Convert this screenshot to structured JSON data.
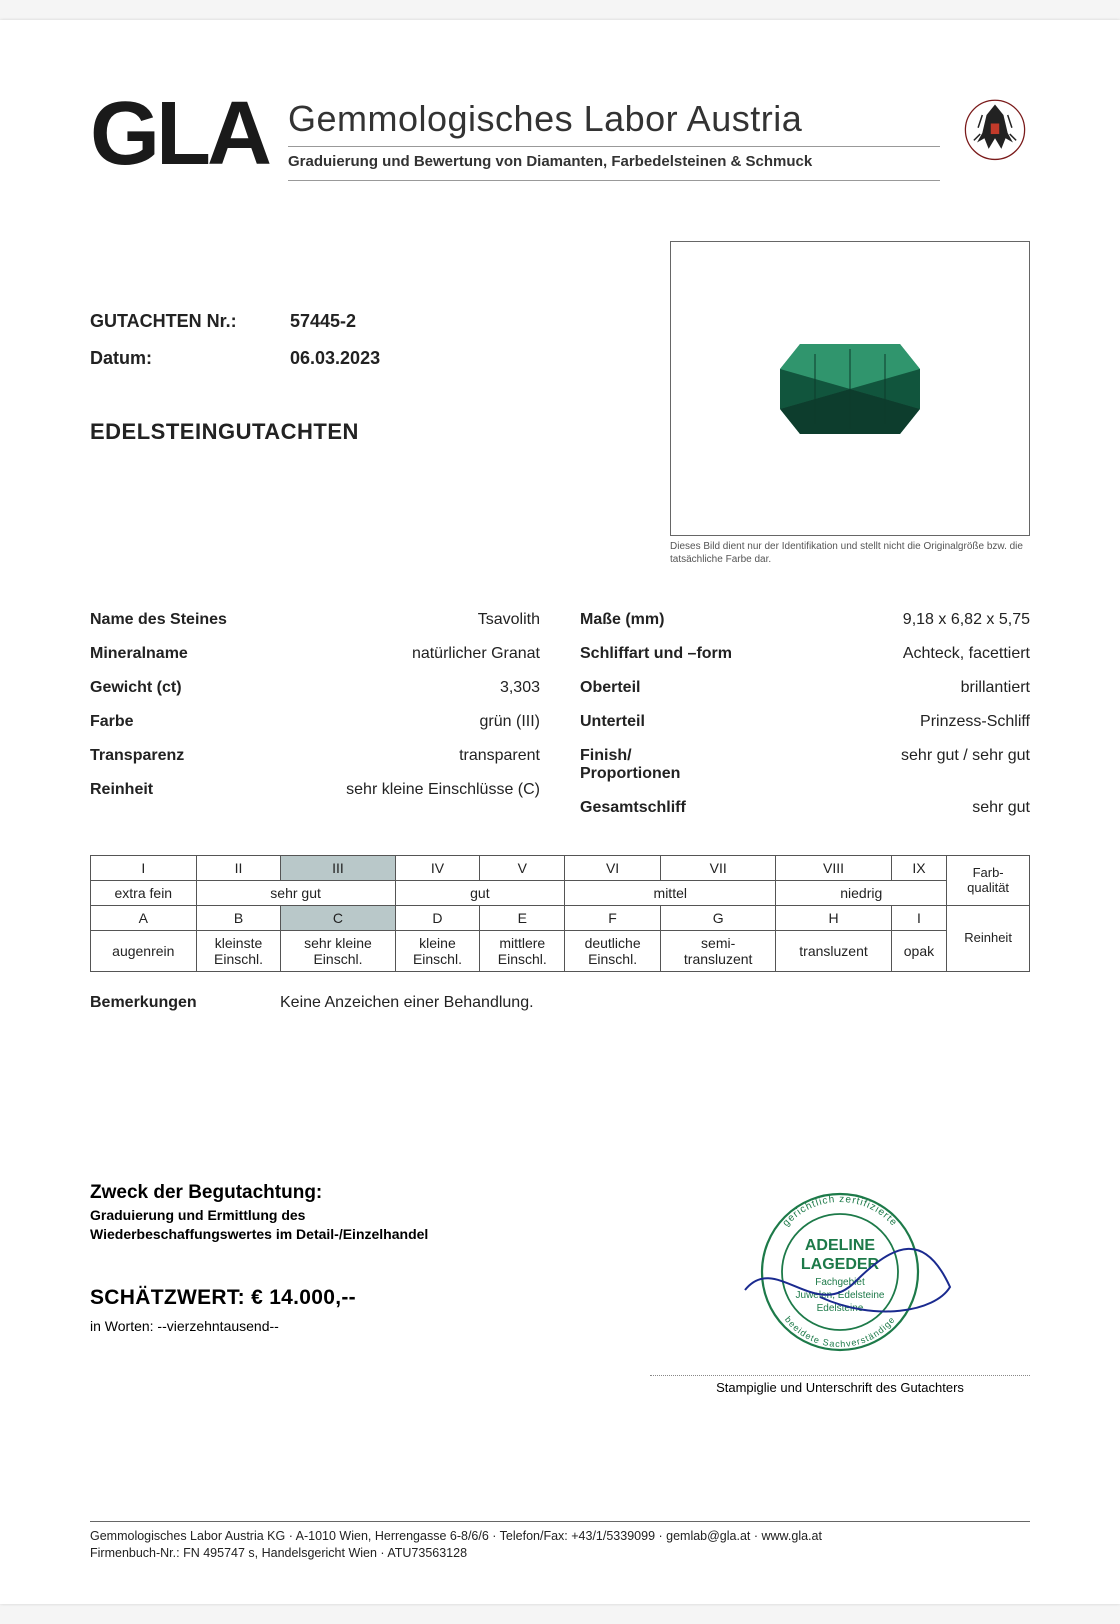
{
  "header": {
    "code": "GLA",
    "title": "Gemmologisches Labor Austria",
    "subtitle": "Graduierung und Bewertung von Diamanten, Farbedelsteinen & Schmuck"
  },
  "reference": {
    "number_label": "GUTACHTEN Nr.:",
    "number_value": "57445-2",
    "date_label": "Datum:",
    "date_value": "06.03.2023"
  },
  "doc_title": "EDELSTEINGUTACHTEN",
  "photo_note": "Dieses Bild dient nur der Identifikation und stellt nicht die Originalgröße bzw. die tatsächliche Farbe dar.",
  "gem_color": "#1f7a58",
  "gem_dark": "#0d3a2a",
  "spec_left": [
    {
      "k": "Name des Steines",
      "v": "Tsavolith"
    },
    {
      "k": "Mineralname",
      "v": "natürlicher Granat"
    },
    {
      "k": "Gewicht (ct)",
      "v": "3,303"
    },
    {
      "k": "Farbe",
      "v": "grün (III)"
    },
    {
      "k": "Transparenz",
      "v": "transparent"
    },
    {
      "k": "Reinheit",
      "v": "sehr kleine Einschlüsse (C)"
    }
  ],
  "spec_right": [
    {
      "k": "Maße (mm)",
      "v": "9,18 x 6,82 x 5,75"
    },
    {
      "k": "Schliffart und –form",
      "v": "Achteck, facettiert"
    },
    {
      "k": "Oberteil",
      "v": "brillantiert"
    },
    {
      "k": "Unterteil",
      "v": "Prinzess-Schliff"
    },
    {
      "k": "Finish/\nProportionen",
      "v": "sehr gut / sehr gut"
    },
    {
      "k": "Gesamtschliff",
      "v": "sehr gut"
    }
  ],
  "grade": {
    "row1": [
      "I",
      "II",
      "III",
      "IV",
      "V",
      "VI",
      "VII",
      "VIII",
      "IX"
    ],
    "row1_side": "Farb-\nqualität",
    "row1_hl_index": 2,
    "row2": [
      "extra fein",
      "sehr gut",
      "gut",
      "mittel",
      "niedrig"
    ],
    "row2_span": [
      1,
      2,
      2,
      2,
      2
    ],
    "row3": [
      "A",
      "B",
      "C",
      "D",
      "E",
      "F",
      "G",
      "H",
      "I"
    ],
    "row3_side": "Reinheit",
    "row3_hl_index": 2,
    "row4": [
      "augenrein",
      "kleinste\nEinschl.",
      "sehr kleine\nEinschl.",
      "kleine\nEinschl.",
      "mittlere\nEinschl.",
      "deutliche\nEinschl.",
      "semi-\ntransluzent",
      "transluzent",
      "opak"
    ]
  },
  "remarks": {
    "label": "Bemerkungen",
    "text": "Keine Anzeichen einer Behandlung."
  },
  "purpose": {
    "heading": "Zweck der Begutachtung:",
    "line1": "Graduierung und Ermittlung des",
    "line2": "Wiederbeschaffungswertes im Detail-/Einzelhandel"
  },
  "valuation": {
    "label": "SCHÄTZWERT: € 14.000,--",
    "words": "in Worten: --vierzehntausend--"
  },
  "stamp": {
    "ring_top": "gerichtlich zertifizierte",
    "ring_bottom": "beeidete Sachverständige",
    "name1": "ADELINE",
    "name2": "LAGEDER",
    "line3": "Fachgebiet",
    "line4": "Juwelen, Edelsteine",
    "line5": "Edelsteine",
    "color": "#1d7a49",
    "caption": "Stampiglie und Unterschrift des Gutachters"
  },
  "footer": {
    "line1": "Gemmologisches Labor Austria KG · A-1010 Wien, Herrengasse 6-8/6/6 · Telefon/Fax: +43/1/5339099 · gemlab@gla.at · www.gla.at",
    "line2": "Firmenbuch-Nr.: FN 495747 s, Handelsgericht Wien · ATU73563128"
  }
}
